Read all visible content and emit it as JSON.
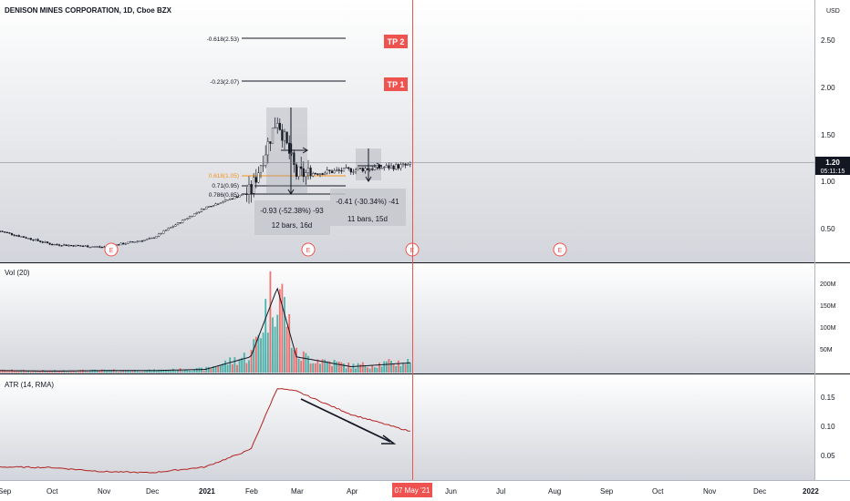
{
  "header": {
    "symbol_title": "DENISON MINES CORPORATION, 1D, Cboe BZX",
    "currency_label": "USD"
  },
  "fib_levels": [
    {
      "label": "-0.618(2.53)",
      "value": 2.53,
      "color": "#131722"
    },
    {
      "label": "-0.23(2.07)",
      "value": 2.07,
      "color": "#131722"
    },
    {
      "label": "0.618(1.05)",
      "value": 1.05,
      "color": "#f7931a"
    },
    {
      "label": "0.71(0.95)",
      "value": 0.95,
      "color": "#131722"
    },
    {
      "label": "0.786(0.85)",
      "value": 0.85,
      "color": "#131722"
    }
  ],
  "targets": [
    {
      "label": "TP 2",
      "value": 2.53
    },
    {
      "label": "TP 1",
      "value": 2.07
    }
  ],
  "measure_boxes": [
    {
      "line1": "-0.93 (-52.38%) -93",
      "line2": "12 bars, 16d"
    },
    {
      "line1": "-0.41 (-30.34%) -41",
      "line2": "11 bars, 15d"
    }
  ],
  "price": {
    "current_label": "1.20",
    "countdown": "05:11:15",
    "current_value": 1.2
  },
  "earnings_marker": "E",
  "volume_panel": {
    "label": "Vol (20)",
    "axis_ticks": [
      "200M",
      "150M",
      "100M",
      "50M"
    ]
  },
  "atr_panel": {
    "label": "ATR (14, RMA)",
    "axis_ticks": [
      "0.15",
      "0.10",
      "0.05"
    ]
  },
  "price_axis_ticks": [
    "2.50",
    "2.00",
    "1.50",
    "1.00",
    "0.50"
  ],
  "time_axis": {
    "ticks": [
      "Sep",
      "Oct",
      "Nov",
      "Dec",
      "2021",
      "Feb",
      "Mar",
      "Apr",
      "Jun",
      "Jul",
      "Aug",
      "Sep",
      "Oct",
      "Nov",
      "Dec",
      "2022"
    ],
    "cursor_label": "07 May '21"
  },
  "colors": {
    "up": "#26a69a",
    "down": "#ef5350",
    "cursor": "#ef5350",
    "fib_orange": "#f7931a",
    "atr_line": "#b22222",
    "tp_box": "#ef5350"
  },
  "chart_data": [
    {
      "type": "candlestick",
      "title": "DENISON MINES CORPORATION, 1D, Cboe BZX",
      "x": [
        "2020-09",
        "2020-10",
        "2020-11",
        "2020-12",
        "2021-01",
        "2021-02",
        "2021-02-20",
        "2021-03",
        "2021-04",
        "2021-05-07"
      ],
      "close": [
        0.5,
        0.36,
        0.33,
        0.42,
        0.75,
        0.92,
        1.7,
        1.1,
        1.15,
        1.2
      ],
      "ylim": [
        0.1,
        2.9
      ],
      "y_ticks": [
        0.5,
        1.0,
        1.5,
        2.0,
        2.5
      ],
      "last_value": 1.2
    },
    {
      "type": "bar",
      "title": "Vol (20)",
      "x": [
        "2020-09",
        "2020-10",
        "2020-11",
        "2020-12",
        "2021-01",
        "2021-02",
        "2021-02-20",
        "2021-03",
        "2021-04",
        "2021-05-07"
      ],
      "values": [
        5,
        4,
        5,
        5,
        8,
        40,
        215,
        40,
        15,
        25
      ],
      "unit": "M",
      "ylim": [
        0,
        230
      ]
    },
    {
      "type": "line",
      "title": "ATR (14, RMA)",
      "x": [
        "2020-09",
        "2020-10",
        "2020-11",
        "2020-12",
        "2021-01",
        "2021-02",
        "2021-02-20",
        "2021-03",
        "2021-04",
        "2021-05-07"
      ],
      "values": [
        0.035,
        0.034,
        0.027,
        0.025,
        0.035,
        0.065,
        0.17,
        0.165,
        0.125,
        0.095
      ],
      "ylim": [
        0.0,
        0.18
      ]
    }
  ]
}
